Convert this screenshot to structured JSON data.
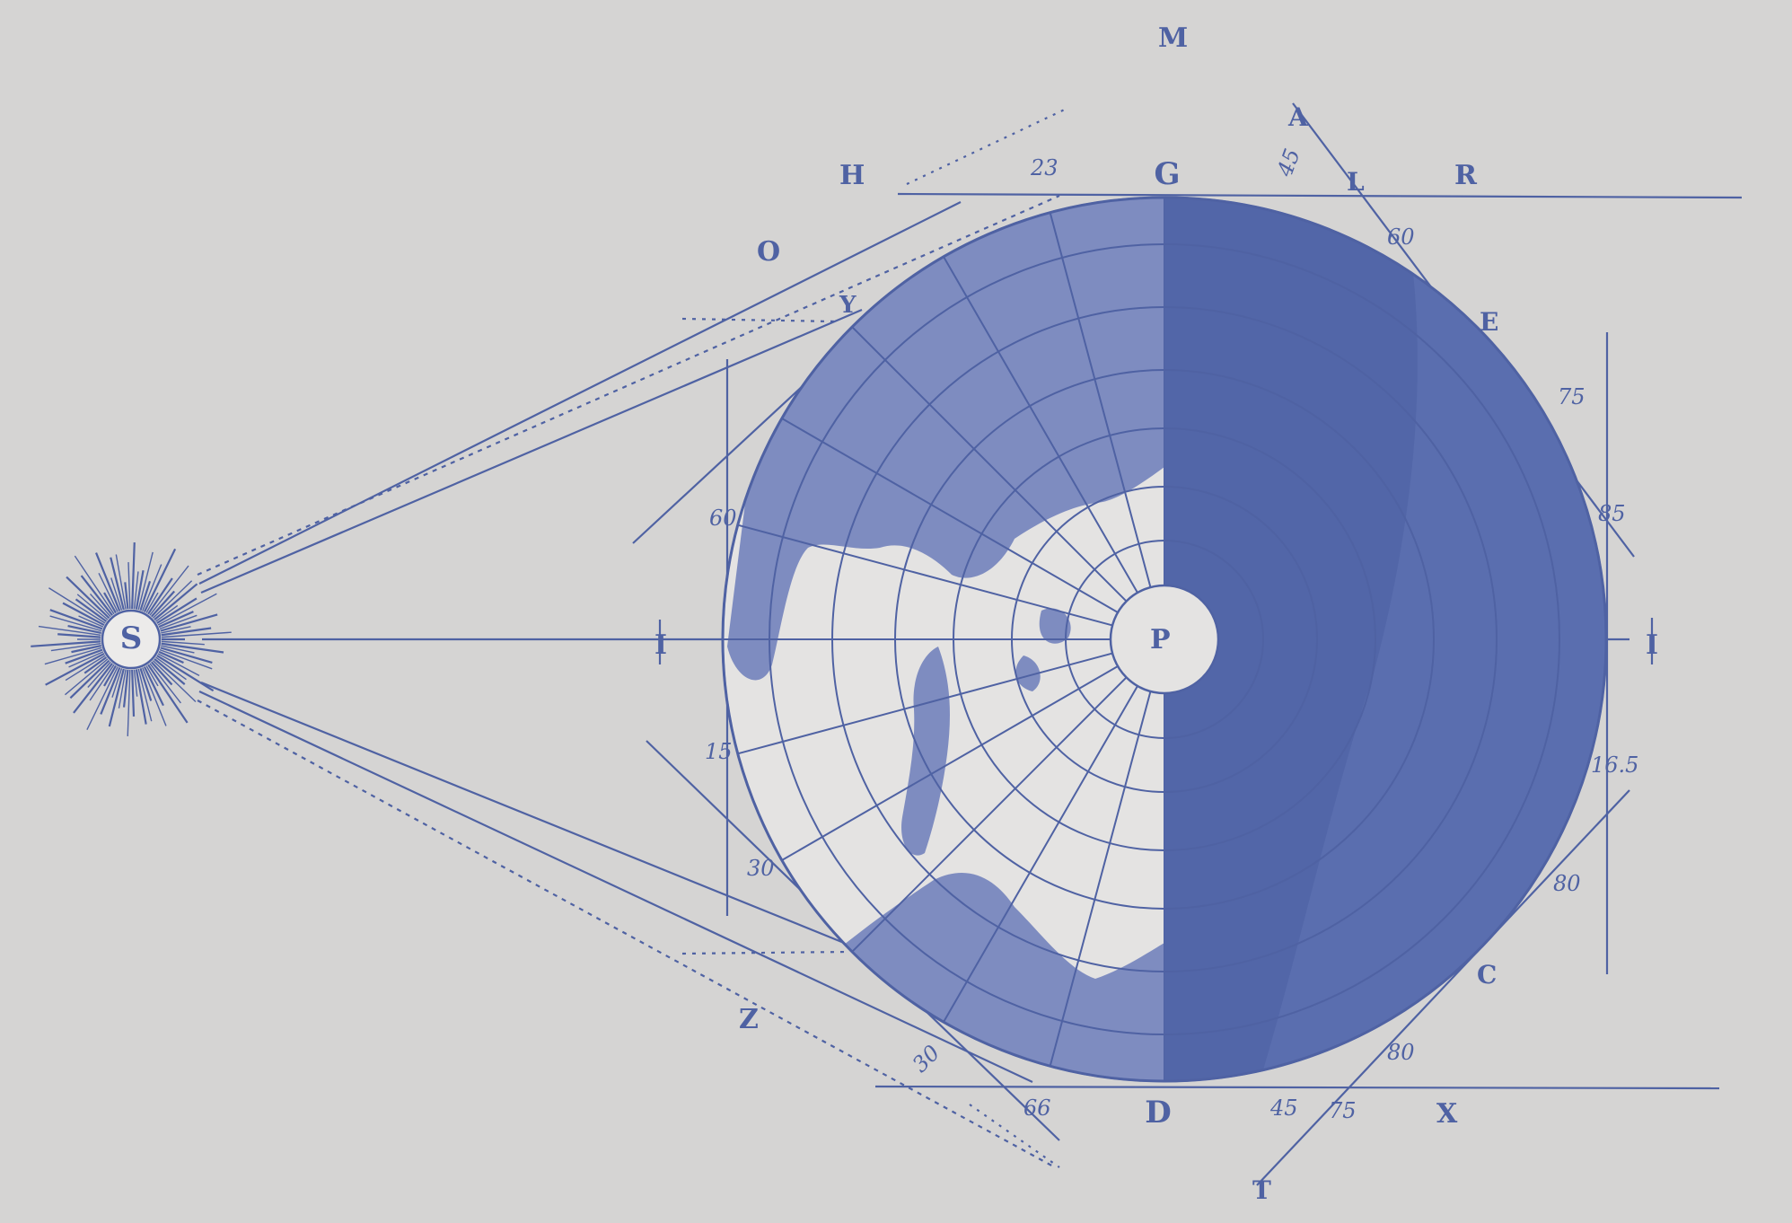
{
  "colors": {
    "paper": "#d5d4d3",
    "ink": "#4f62a3",
    "land": "#7e8cc0",
    "night": "#5a6eaf",
    "night_dark": "#4c60a3"
  },
  "sun": {
    "label": "S"
  },
  "globe_center_label": "P",
  "point_labels": {
    "M": "M",
    "H": "H",
    "G": "G",
    "R": "R",
    "O": "O",
    "Y": "Y",
    "Z": "Z",
    "D": "D",
    "X": "X",
    "A": "A",
    "L": "L",
    "E": "E",
    "C": "C",
    "T": "T",
    "arrow_left": "I",
    "arrow_right": "I"
  },
  "degree_marks": {
    "top_left": "23",
    "top_right": "45",
    "upper_right_60": "60",
    "right_75": "75",
    "right_85": "85",
    "left_60": "60",
    "left_15": "15",
    "left_30": "30",
    "right_165": "16.5",
    "right_80": "80",
    "bottom_30": "30",
    "bottom_80": "80",
    "bottom_75": "75",
    "bottom_45": "45",
    "bottom_left_66": "66"
  },
  "icons": [
    "sun-icon",
    "globe-icon"
  ]
}
